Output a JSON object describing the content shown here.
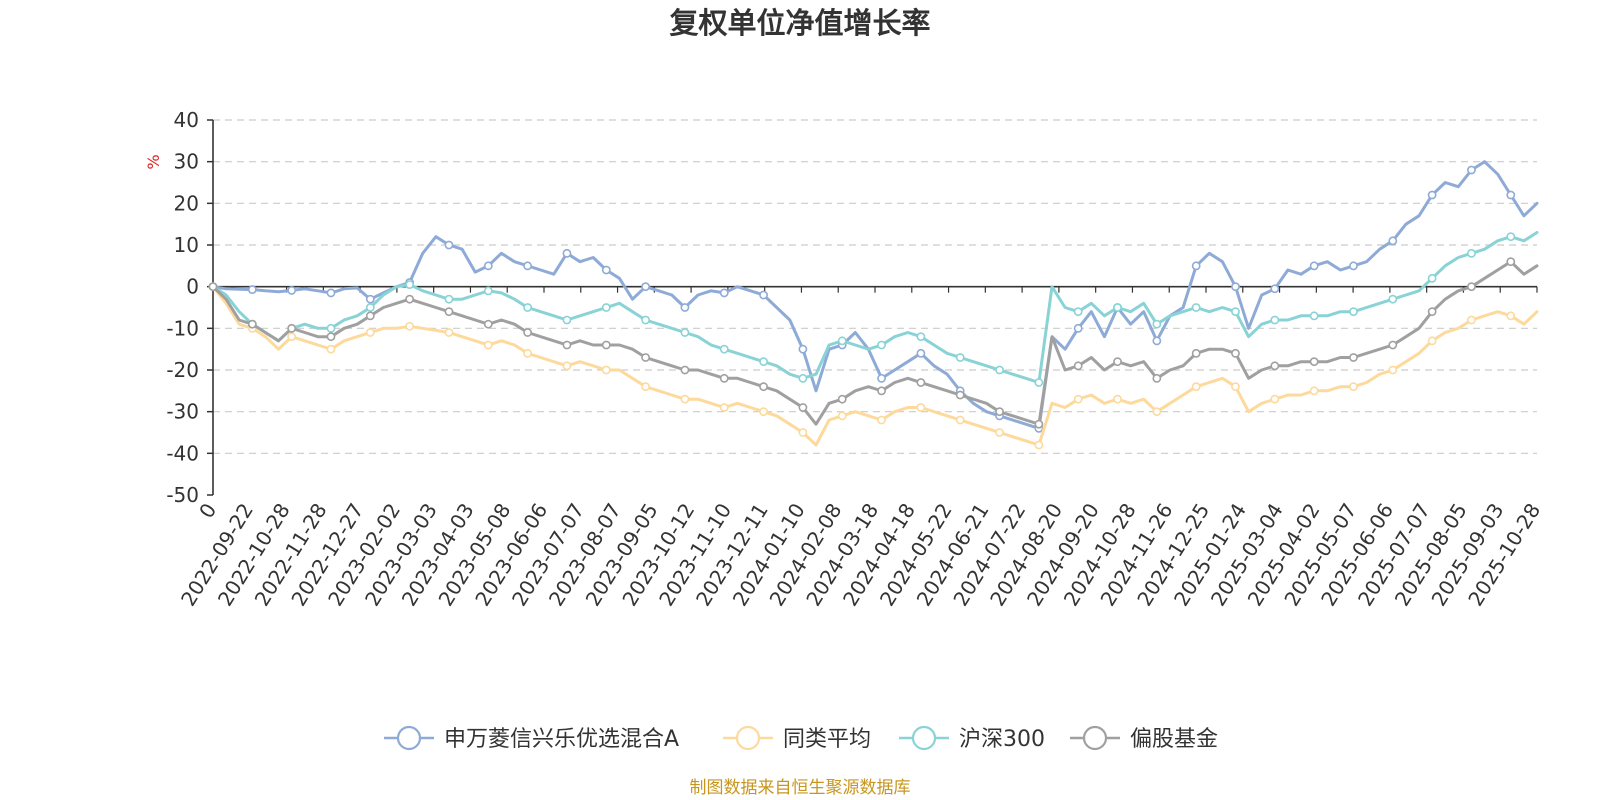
{
  "chart_data": {
    "type": "line",
    "title": "复权单位净值增长率",
    "ylabel": "%",
    "ylim": [
      -50,
      40
    ],
    "yticks": [
      40,
      30,
      20,
      10,
      0,
      -10,
      -20,
      -30,
      -40,
      -50
    ],
    "x_tick_labels": [
      "0",
      "2022-09-22",
      "2022-10-28",
      "2022-11-28",
      "2022-12-27",
      "2023-02-02",
      "2023-03-03",
      "2023-04-03",
      "2023-05-08",
      "2023-06-06",
      "2023-07-07",
      "2023-08-07",
      "2023-09-05",
      "2023-10-12",
      "2023-11-10",
      "2023-12-11",
      "2024-01-10",
      "2024-02-08",
      "2024-03-18",
      "2024-04-18",
      "2024-05-22",
      "2024-06-21",
      "2024-07-22",
      "2024-08-20",
      "2024-09-20",
      "2024-10-28",
      "2024-11-26",
      "2024-12-25",
      "2025-01-24",
      "2025-03-04",
      "2025-04-02",
      "2025-05-07",
      "2025-06-06",
      "2025-07-07",
      "2025-08-05",
      "2025-09-03",
      "2025-10-28"
    ],
    "grid": "horizontal-dashed",
    "legend_position": "bottom",
    "source": "制图数据来自恒生聚源数据库",
    "series": [
      {
        "name": "申万菱信兴乐优选混合A",
        "color": "#8eaad6",
        "values": [
          0,
          -0.5,
          -0.6,
          -0.7,
          -1.0,
          -1.2,
          -0.9,
          -0.5,
          -1.0,
          -1.5,
          -0.5,
          -0.3,
          -3.0,
          -1.5,
          0.0,
          1.0,
          8.0,
          12.0,
          10.0,
          9.0,
          3.5,
          5.0,
          8.0,
          6.0,
          5.0,
          4.0,
          3.0,
          8.0,
          6.0,
          7.0,
          4.0,
          2.0,
          -3.0,
          0.0,
          -1.0,
          -2.0,
          -5.0,
          -2.0,
          -1.0,
          -1.5,
          0.0,
          -1.0,
          -2.0,
          -5.0,
          -8.0,
          -15.0,
          -25.0,
          -15.0,
          -14.0,
          -11.0,
          -15.0,
          -22.0,
          -20.0,
          -18.0,
          -16.0,
          -19.0,
          -21.0,
          -25.0,
          -28.0,
          -30.0,
          -31.0,
          -32.0,
          -33.0,
          -34.0,
          -12.0,
          -15.0,
          -10.0,
          -6.0,
          -12.0,
          -5.0,
          -9.0,
          -6.0,
          -13.0,
          -7.0,
          -5.0,
          5.0,
          8.0,
          6.0,
          0.0,
          -10.0,
          -2.0,
          -0.5,
          4.0,
          3.0,
          5.0,
          6.0,
          4.0,
          5.0,
          6.0,
          9.0,
          11.0,
          15.0,
          17.0,
          22.0,
          25.0,
          24.0,
          28.0,
          30.0,
          27.0,
          22.0,
          17.0,
          20.0
        ]
      },
      {
        "name": "同类平均",
        "color": "#fdd99b",
        "values": [
          0,
          -4.0,
          -9.0,
          -10.0,
          -12.0,
          -15.0,
          -12.0,
          -13.0,
          -14.0,
          -15.0,
          -13.0,
          -12.0,
          -11.0,
          -10.0,
          -10.0,
          -9.5,
          -10.0,
          -10.5,
          -11.0,
          -12.0,
          -13.0,
          -14.0,
          -13.0,
          -14.0,
          -16.0,
          -17.0,
          -18.0,
          -19.0,
          -18.0,
          -19.0,
          -20.0,
          -20.0,
          -22.0,
          -24.0,
          -25.0,
          -26.0,
          -27.0,
          -27.0,
          -28.0,
          -29.0,
          -28.0,
          -29.0,
          -30.0,
          -31.0,
          -33.0,
          -35.0,
          -38.0,
          -32.0,
          -31.0,
          -30.0,
          -31.0,
          -32.0,
          -30.0,
          -29.0,
          -29.0,
          -30.0,
          -31.0,
          -32.0,
          -33.0,
          -34.0,
          -35.0,
          -36.0,
          -37.0,
          -38.0,
          -28.0,
          -29.0,
          -27.0,
          -26.0,
          -28.0,
          -27.0,
          -28.0,
          -27.0,
          -30.0,
          -28.0,
          -26.0,
          -24.0,
          -23.0,
          -22.0,
          -24.0,
          -30.0,
          -28.0,
          -27.0,
          -26.0,
          -26.0,
          -25.0,
          -25.0,
          -24.0,
          -24.0,
          -23.0,
          -21.0,
          -20.0,
          -18.0,
          -16.0,
          -13.0,
          -11.0,
          -10.0,
          -8.0,
          -7.0,
          -6.0,
          -7.0,
          -9.0,
          -6.0
        ]
      },
      {
        "name": "沪深300",
        "color": "#89d3d6",
        "values": [
          0,
          -2.0,
          -6.0,
          -9.0,
          -11.0,
          -13.0,
          -10.0,
          -9.0,
          -10.0,
          -10.0,
          -8.0,
          -7.0,
          -5.0,
          -2.0,
          0.0,
          0.5,
          -1.0,
          -2.0,
          -3.0,
          -3.0,
          -2.0,
          -1.0,
          -1.5,
          -3.0,
          -5.0,
          -6.0,
          -7.0,
          -8.0,
          -7.0,
          -6.0,
          -5.0,
          -4.0,
          -6.0,
          -8.0,
          -9.0,
          -10.0,
          -11.0,
          -12.0,
          -14.0,
          -15.0,
          -16.0,
          -17.0,
          -18.0,
          -19.0,
          -21.0,
          -22.0,
          -21.0,
          -14.0,
          -13.0,
          -14.0,
          -15.0,
          -14.0,
          -12.0,
          -11.0,
          -12.0,
          -14.0,
          -16.0,
          -17.0,
          -18.0,
          -19.0,
          -20.0,
          -21.0,
          -22.0,
          -23.0,
          0.0,
          -5.0,
          -6.0,
          -4.0,
          -7.0,
          -5.0,
          -6.0,
          -4.0,
          -9.0,
          -7.0,
          -6.0,
          -5.0,
          -6.0,
          -5.0,
          -6.0,
          -12.0,
          -9.0,
          -8.0,
          -8.0,
          -7.0,
          -7.0,
          -7.0,
          -6.0,
          -6.0,
          -5.0,
          -4.0,
          -3.0,
          -2.0,
          -1.0,
          2.0,
          5.0,
          7.0,
          8.0,
          9.0,
          11.0,
          12.0,
          11.0,
          13.0
        ]
      },
      {
        "name": "偏股基金",
        "color": "#a0a0a0",
        "values": [
          0,
          -3.0,
          -8.0,
          -9.0,
          -11.0,
          -13.0,
          -10.0,
          -11.0,
          -12.0,
          -12.0,
          -10.0,
          -9.0,
          -7.0,
          -5.0,
          -4.0,
          -3.0,
          -4.0,
          -5.0,
          -6.0,
          -7.0,
          -8.0,
          -9.0,
          -8.0,
          -9.0,
          -11.0,
          -12.0,
          -13.0,
          -14.0,
          -13.0,
          -14.0,
          -14.0,
          -14.0,
          -15.0,
          -17.0,
          -18.0,
          -19.0,
          -20.0,
          -20.0,
          -21.0,
          -22.0,
          -22.0,
          -23.0,
          -24.0,
          -25.0,
          -27.0,
          -29.0,
          -33.0,
          -28.0,
          -27.0,
          -25.0,
          -24.0,
          -25.0,
          -23.0,
          -22.0,
          -23.0,
          -24.0,
          -25.0,
          -26.0,
          -27.0,
          -28.0,
          -30.0,
          -31.0,
          -32.0,
          -33.0,
          -12.0,
          -20.0,
          -19.0,
          -17.0,
          -20.0,
          -18.0,
          -19.0,
          -18.0,
          -22.0,
          -20.0,
          -19.0,
          -16.0,
          -15.0,
          -15.0,
          -16.0,
          -22.0,
          -20.0,
          -19.0,
          -19.0,
          -18.0,
          -18.0,
          -18.0,
          -17.0,
          -17.0,
          -16.0,
          -15.0,
          -14.0,
          -12.0,
          -10.0,
          -6.0,
          -3.0,
          -1.0,
          0.0,
          2.0,
          4.0,
          6.0,
          3.0,
          5.0
        ]
      }
    ]
  }
}
